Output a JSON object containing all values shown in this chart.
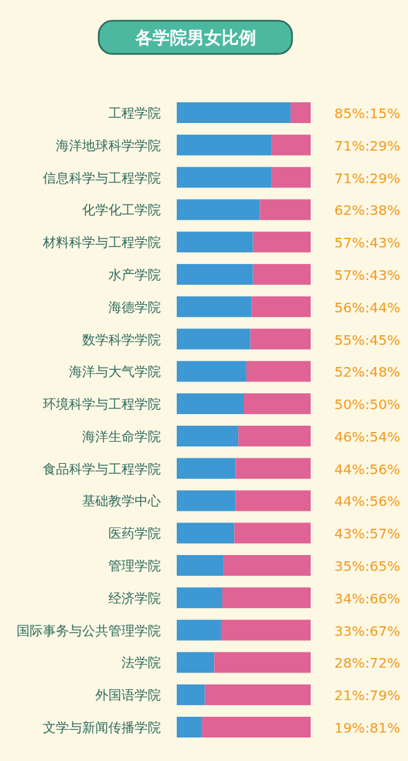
{
  "chart_data": {
    "type": "bar",
    "orientation": "horizontal",
    "stacked": true,
    "title": "各学院男女比例",
    "categories": [
      "工程学院",
      "海洋地球科学学院",
      "信息科学与工程学院",
      "化学化工学院",
      "材料科学与工程学院",
      "水产学院",
      "海德学院",
      "数学科学学院",
      "海洋与大气学院",
      "环境科学与工程学院",
      "海洋生命学院",
      "食品科学与工程学院",
      "基础教学中心",
      "医药学院",
      "管理学院",
      "经济学院",
      "国际事务与公共管理学院",
      "法学院",
      "外国语学院",
      "文学与新闻传播学院"
    ],
    "xlim": [
      0,
      100
    ],
    "tick_labels": false,
    "series": [
      {
        "color": "#3d98d3",
        "values": [
          85,
          71,
          71,
          62,
          57,
          57,
          56,
          55,
          52,
          50,
          46,
          44,
          44,
          43,
          35,
          34,
          33,
          28,
          21,
          19
        ],
        "value_labels": [
          "85%:15%",
          "71%:29%",
          "71%:29%",
          "62%:38%",
          "57%:43%",
          "57%:43%",
          "56%:44%",
          "55%:45%",
          "52%:48%",
          "50%:50%",
          "46%:54%",
          "44%:56%",
          "44%:56%",
          "43%:57%",
          "35%:65%",
          "34%:66%",
          "33%:67%",
          "28%:72%",
          "21%:79%",
          "19%:81%"
        ]
      },
      {
        "color": "#df6395",
        "values": [
          15,
          29,
          29,
          38,
          43,
          43,
          44,
          45,
          48,
          50,
          54,
          56,
          56,
          57,
          65,
          66,
          67,
          72,
          79,
          81
        ]
      }
    ]
  }
}
